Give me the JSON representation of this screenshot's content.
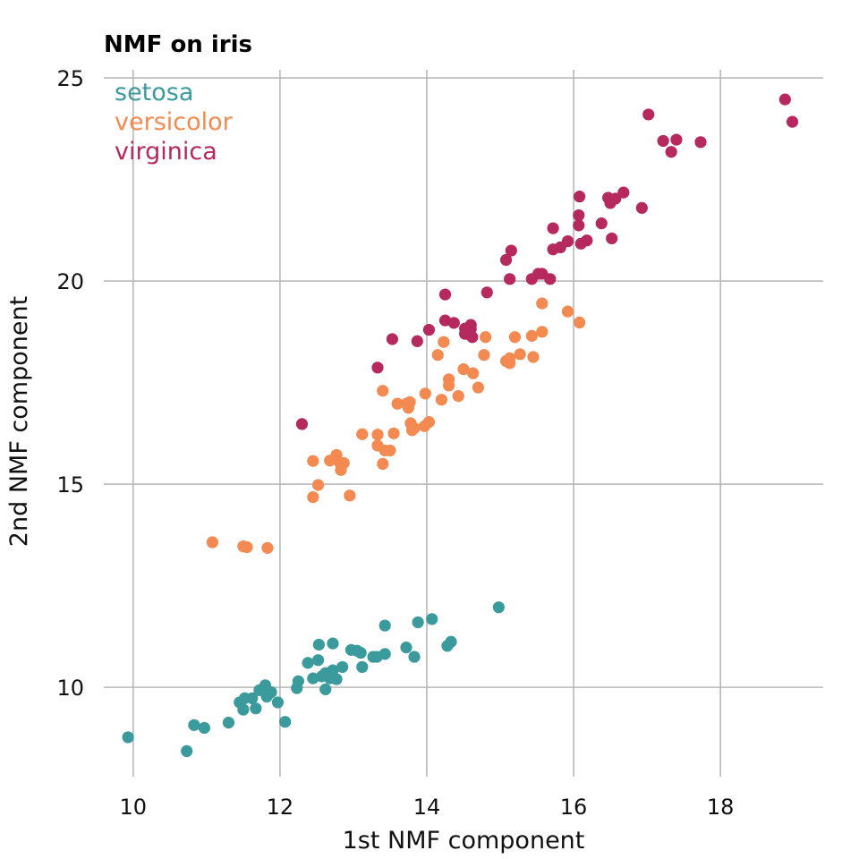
{
  "chart_data": {
    "type": "scatter",
    "title": "NMF on iris",
    "xlabel": "1st NMF component",
    "ylabel": "2nd NMF component",
    "xlim": [
      9.6,
      19.4
    ],
    "ylim": [
      7.8,
      25.2
    ],
    "x_ticks": [
      10,
      12,
      14,
      16,
      18
    ],
    "y_ticks": [
      10,
      15,
      20,
      25
    ],
    "grid": true,
    "legend_position": "top-left",
    "series": [
      {
        "name": "setosa",
        "color": "#3a9a9c",
        "points": [
          [
            9.93,
            8.77
          ],
          [
            10.73,
            8.43
          ],
          [
            10.83,
            9.07
          ],
          [
            10.97,
            9.0
          ],
          [
            11.3,
            9.13
          ],
          [
            11.45,
            9.63
          ],
          [
            11.5,
            9.45
          ],
          [
            11.52,
            9.73
          ],
          [
            11.62,
            9.73
          ],
          [
            11.67,
            9.48
          ],
          [
            11.72,
            9.93
          ],
          [
            11.8,
            10.05
          ],
          [
            11.82,
            9.77
          ],
          [
            11.88,
            9.88
          ],
          [
            11.97,
            9.63
          ],
          [
            12.07,
            9.15
          ],
          [
            12.23,
            9.98
          ],
          [
            12.25,
            10.15
          ],
          [
            12.38,
            10.6
          ],
          [
            12.45,
            10.22
          ],
          [
            12.52,
            10.67
          ],
          [
            12.53,
            11.05
          ],
          [
            12.57,
            10.27
          ],
          [
            12.62,
            9.95
          ],
          [
            12.62,
            10.35
          ],
          [
            12.68,
            10.22
          ],
          [
            12.72,
            11.08
          ],
          [
            12.72,
            10.42
          ],
          [
            12.77,
            10.2
          ],
          [
            12.85,
            10.5
          ],
          [
            12.97,
            10.92
          ],
          [
            13.05,
            10.9
          ],
          [
            13.1,
            10.85
          ],
          [
            13.12,
            10.5
          ],
          [
            13.27,
            10.75
          ],
          [
            13.32,
            10.75
          ],
          [
            13.43,
            11.52
          ],
          [
            13.43,
            10.82
          ],
          [
            13.72,
            10.98
          ],
          [
            13.83,
            10.75
          ],
          [
            13.88,
            11.6
          ],
          [
            14.07,
            11.68
          ],
          [
            14.28,
            11.02
          ],
          [
            14.33,
            11.12
          ],
          [
            14.98,
            11.97
          ]
        ]
      },
      {
        "name": "versicolor",
        "color": "#f28a52",
        "points": [
          [
            11.08,
            13.57
          ],
          [
            11.5,
            13.47
          ],
          [
            11.55,
            13.45
          ],
          [
            11.83,
            13.43
          ],
          [
            12.45,
            14.68
          ],
          [
            12.45,
            15.57
          ],
          [
            12.52,
            14.98
          ],
          [
            12.68,
            15.58
          ],
          [
            12.77,
            15.72
          ],
          [
            12.82,
            15.52
          ],
          [
            12.83,
            15.35
          ],
          [
            12.87,
            15.52
          ],
          [
            12.95,
            14.72
          ],
          [
            13.12,
            16.23
          ],
          [
            13.33,
            16.22
          ],
          [
            13.33,
            15.95
          ],
          [
            13.4,
            15.5
          ],
          [
            13.4,
            17.3
          ],
          [
            13.43,
            15.83
          ],
          [
            13.5,
            15.83
          ],
          [
            13.55,
            16.25
          ],
          [
            13.6,
            16.98
          ],
          [
            13.72,
            16.98
          ],
          [
            13.75,
            16.88
          ],
          [
            13.77,
            17.02
          ],
          [
            13.78,
            16.5
          ],
          [
            13.8,
            16.33
          ],
          [
            13.83,
            16.38
          ],
          [
            13.97,
            16.43
          ],
          [
            13.98,
            17.23
          ],
          [
            14.03,
            16.53
          ],
          [
            14.15,
            18.18
          ],
          [
            14.2,
            17.08
          ],
          [
            14.23,
            18.5
          ],
          [
            14.3,
            17.58
          ],
          [
            14.3,
            17.43
          ],
          [
            14.43,
            17.17
          ],
          [
            14.5,
            17.83
          ],
          [
            14.63,
            17.73
          ],
          [
            14.7,
            17.38
          ],
          [
            14.78,
            18.18
          ],
          [
            14.8,
            18.62
          ],
          [
            15.08,
            18.03
          ],
          [
            15.13,
            18.1
          ],
          [
            15.13,
            17.98
          ],
          [
            15.2,
            18.62
          ],
          [
            15.27,
            18.2
          ],
          [
            15.43,
            18.65
          ],
          [
            15.45,
            18.13
          ],
          [
            15.57,
            19.45
          ],
          [
            15.57,
            18.75
          ],
          [
            15.92,
            19.25
          ],
          [
            16.08,
            18.98
          ]
        ]
      },
      {
        "name": "virginica",
        "color": "#b5295e",
        "points": [
          [
            12.3,
            16.48
          ],
          [
            13.33,
            17.87
          ],
          [
            13.53,
            18.57
          ],
          [
            13.87,
            18.52
          ],
          [
            14.03,
            18.8
          ],
          [
            14.25,
            19.67
          ],
          [
            14.25,
            19.03
          ],
          [
            14.37,
            18.97
          ],
          [
            14.52,
            18.7
          ],
          [
            14.52,
            18.83
          ],
          [
            14.6,
            18.92
          ],
          [
            14.62,
            18.62
          ],
          [
            14.6,
            18.82
          ],
          [
            14.82,
            19.72
          ],
          [
            15.08,
            20.52
          ],
          [
            15.13,
            20.05
          ],
          [
            15.15,
            20.75
          ],
          [
            15.43,
            20.05
          ],
          [
            15.52,
            20.18
          ],
          [
            15.57,
            20.18
          ],
          [
            15.68,
            20.05
          ],
          [
            15.72,
            21.3
          ],
          [
            15.72,
            20.78
          ],
          [
            15.82,
            20.83
          ],
          [
            15.92,
            20.98
          ],
          [
            16.07,
            21.37
          ],
          [
            16.07,
            21.62
          ],
          [
            16.08,
            22.08
          ],
          [
            16.1,
            20.92
          ],
          [
            16.18,
            21.0
          ],
          [
            16.38,
            21.42
          ],
          [
            16.47,
            22.05
          ],
          [
            16.5,
            21.92
          ],
          [
            16.52,
            21.05
          ],
          [
            16.57,
            22.03
          ],
          [
            16.68,
            22.18
          ],
          [
            16.93,
            21.8
          ],
          [
            17.02,
            24.1
          ],
          [
            17.22,
            23.45
          ],
          [
            17.33,
            23.18
          ],
          [
            17.4,
            23.48
          ],
          [
            17.73,
            23.42
          ],
          [
            18.88,
            24.47
          ],
          [
            18.98,
            23.92
          ]
        ]
      }
    ]
  }
}
